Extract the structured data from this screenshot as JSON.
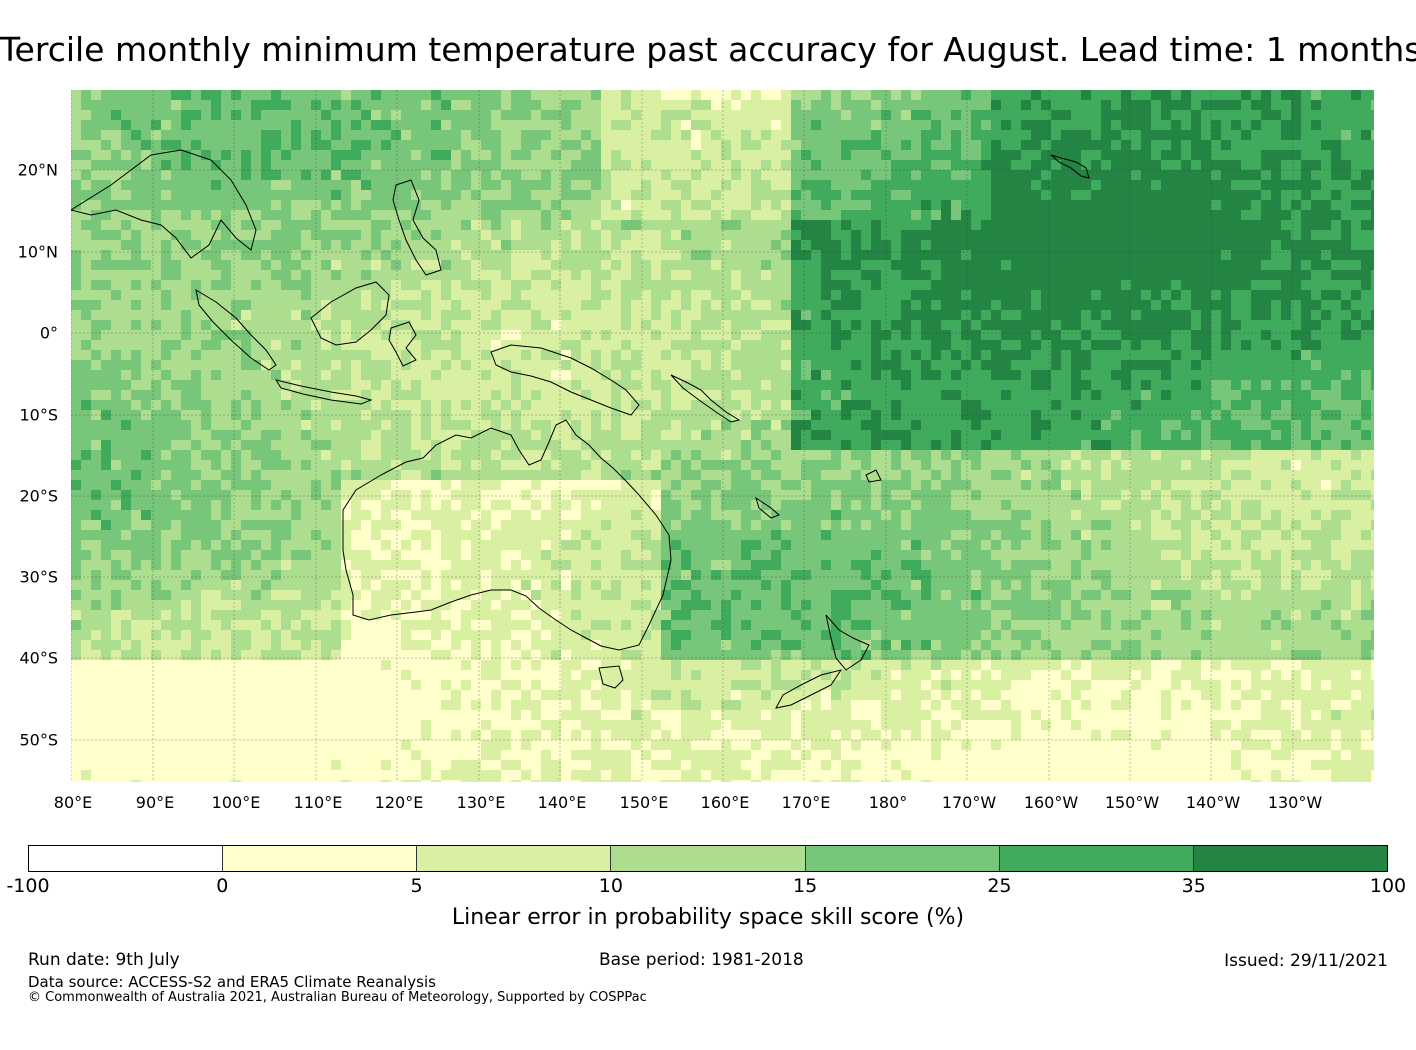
{
  "title": "Tercile monthly minimum temperature past accuracy for August. Lead time: 1 months",
  "map": {
    "lat_labels": [
      "20°N",
      "10°N",
      "0°",
      "10°S",
      "20°S",
      "30°S",
      "40°S",
      "50°S"
    ],
    "lon_labels": [
      "80°E",
      "90°E",
      "100°E",
      "110°E",
      "120°E",
      "130°E",
      "140°E",
      "150°E",
      "160°E",
      "170°E",
      "180°",
      "170°W",
      "160°W",
      "150°W",
      "140°W",
      "130°W"
    ],
    "colors": {
      "ocean_base": "#74c476",
      "coastline": "#000000",
      "gridline": "#333333"
    }
  },
  "colorbar": {
    "ticks": [
      "-100",
      "0",
      "5",
      "10",
      "15",
      "25",
      "35",
      "100"
    ],
    "colors": [
      "#ffffff",
      "#ffffcc",
      "#d9f0a3",
      "#addd8e",
      "#78c679",
      "#41ab5d",
      "#238443"
    ],
    "label": "Linear error in probability space skill score (%)"
  },
  "footer": {
    "run_date": "Run date: 9th July",
    "base_period": "Base period: 1981-2018",
    "issued": "Issued: 29/11/2021",
    "data_source": "Data source: ACCESS-S2 and ERA5 Climate Reanalysis",
    "copyright": "© Commonwealth of Australia 2021, Australian Bureau of Meteorology, Supported by COSPPac"
  }
}
